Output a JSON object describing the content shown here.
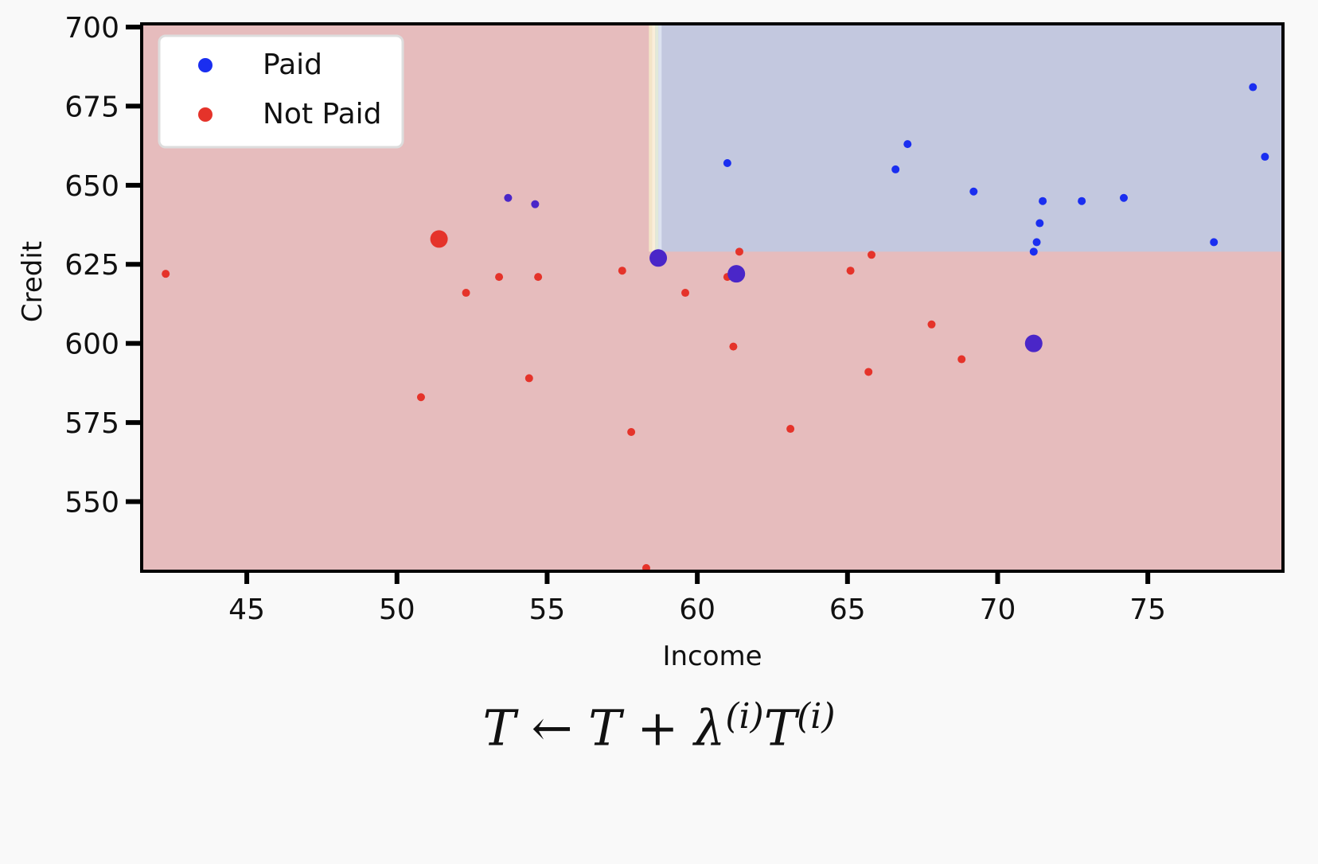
{
  "chart_data": {
    "type": "scatter",
    "xlabel": "Income",
    "ylabel": "Credit",
    "xlim": [
      41.5,
      79.5
    ],
    "ylim": [
      528,
      701
    ],
    "xticks": [
      45,
      50,
      55,
      60,
      65,
      70,
      75
    ],
    "yticks": [
      550,
      575,
      600,
      625,
      650,
      675,
      700
    ],
    "legend_position": "top-left",
    "colors": {
      "paid": "#1a2ef0",
      "not_paid": "#e5332a",
      "highlight": "#4a26c8",
      "region_paid": "#c3c8df",
      "region_not_paid": "#e6bcbd"
    },
    "regions": [
      {
        "class": "Paid",
        "x_range": [
          58.6,
          79.5
        ],
        "y_range": [
          629,
          701
        ]
      },
      {
        "class": "Not Paid",
        "rest": true
      }
    ],
    "series": [
      {
        "name": "Paid",
        "points": [
          [
            61.0,
            657
          ],
          [
            66.6,
            655
          ],
          [
            67.0,
            663
          ],
          [
            69.2,
            648
          ],
          [
            71.5,
            645
          ],
          [
            71.3,
            632
          ],
          [
            71.2,
            629
          ],
          [
            71.4,
            638
          ],
          [
            72.8,
            645
          ],
          [
            74.2,
            646
          ],
          [
            77.2,
            632
          ],
          [
            78.5,
            681
          ],
          [
            78.9,
            659
          ]
        ]
      },
      {
        "name": "Not Paid",
        "points": [
          [
            42.3,
            622
          ],
          [
            50.8,
            583
          ],
          [
            52.3,
            616
          ],
          [
            53.4,
            621
          ],
          [
            54.4,
            589
          ],
          [
            54.7,
            621
          ],
          [
            57.5,
            623
          ],
          [
            57.8,
            572
          ],
          [
            58.3,
            529
          ],
          [
            59.6,
            616
          ],
          [
            61.0,
            621
          ],
          [
            61.2,
            599
          ],
          [
            61.4,
            629
          ],
          [
            63.1,
            573
          ],
          [
            65.1,
            623
          ],
          [
            65.7,
            591
          ],
          [
            65.8,
            628
          ],
          [
            67.8,
            606
          ],
          [
            68.8,
            595
          ]
        ]
      }
    ],
    "highlighted_points": [
      {
        "x": 53.7,
        "y": 646,
        "size": "small",
        "label": "Paid"
      },
      {
        "x": 54.6,
        "y": 644,
        "size": "small",
        "label": "Paid"
      },
      {
        "x": 58.7,
        "y": 627,
        "size": "large",
        "label": "Paid"
      },
      {
        "x": 61.3,
        "y": 622,
        "size": "large",
        "label": "Paid"
      },
      {
        "x": 71.2,
        "y": 600,
        "size": "large",
        "label": "Paid"
      },
      {
        "x": 51.4,
        "y": 633,
        "size": "large",
        "label": "Not Paid"
      }
    ]
  },
  "formula": {
    "lhs": "T",
    "arrow": "←",
    "rhs_term": "T",
    "plus": "+",
    "lambda": "λ",
    "sup1": "(i)",
    "t2": "T",
    "sup2": "(i)"
  }
}
